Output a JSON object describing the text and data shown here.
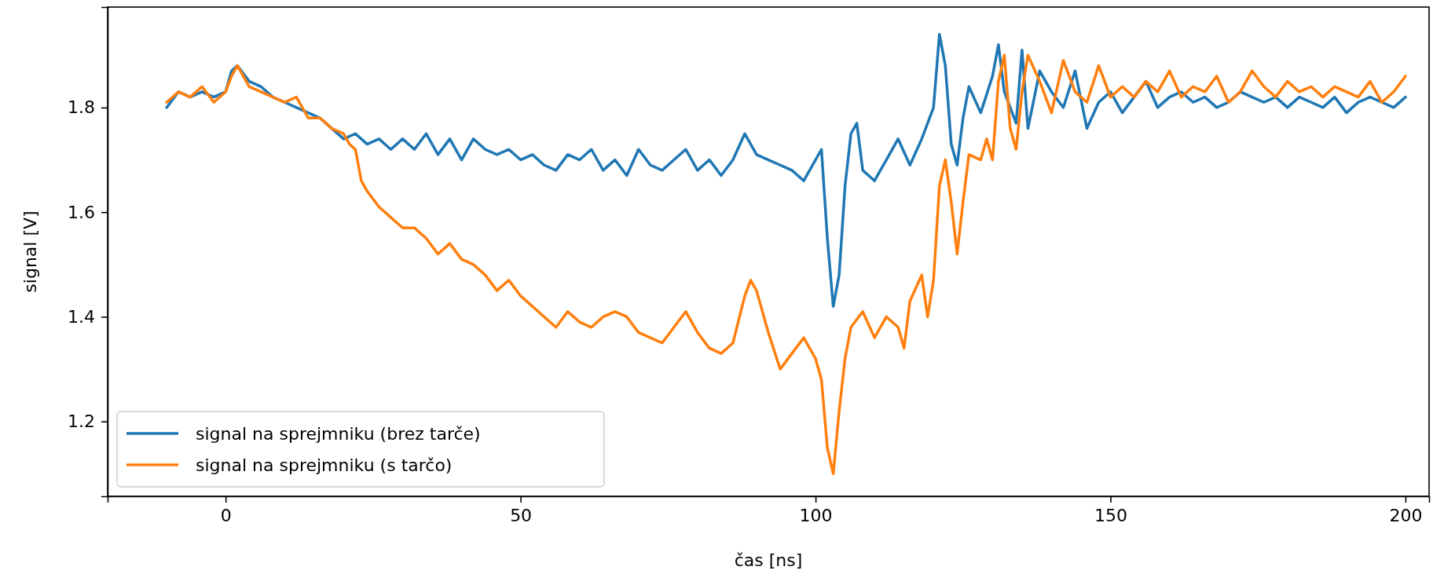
{
  "chart_data": {
    "type": "line",
    "xlabel": "čas [ns]",
    "ylabel": "signal [V]",
    "xlim": [
      -20,
      204
    ],
    "ylim": [
      1.057,
      1.992
    ],
    "xticks": [
      0,
      50,
      100,
      150,
      200
    ],
    "yticks": [
      1.2,
      1.4,
      1.6,
      1.8
    ],
    "legend": "bottom left",
    "grid": false,
    "series": [
      {
        "name": "signal na sprejmniku (brez tarče)",
        "color": "#1f77b4",
        "x": [
          -10,
          -8,
          -6,
          -4,
          -2,
          0,
          1,
          2,
          4,
          6,
          8,
          10,
          12,
          14,
          16,
          18,
          20,
          22,
          24,
          26,
          28,
          30,
          32,
          34,
          36,
          38,
          40,
          42,
          44,
          46,
          48,
          50,
          52,
          54,
          56,
          58,
          60,
          62,
          64,
          66,
          68,
          70,
          72,
          74,
          76,
          78,
          80,
          82,
          84,
          86,
          88,
          90,
          92,
          94,
          96,
          98,
          100,
          101,
          102,
          103,
          104,
          105,
          106,
          107,
          108,
          110,
          112,
          114,
          116,
          118,
          120,
          121,
          122,
          123,
          124,
          125,
          126,
          128,
          130,
          131,
          132,
          134,
          135,
          136,
          138,
          140,
          142,
          144,
          146,
          148,
          150,
          152,
          154,
          156,
          158,
          160,
          162,
          164,
          166,
          168,
          170,
          172,
          174,
          176,
          178,
          180,
          182,
          184,
          186,
          188,
          190,
          192,
          194,
          196,
          198,
          200
        ],
        "values": [
          1.8,
          1.83,
          1.82,
          1.83,
          1.82,
          1.83,
          1.87,
          1.88,
          1.85,
          1.84,
          1.82,
          1.81,
          1.8,
          1.79,
          1.78,
          1.76,
          1.74,
          1.75,
          1.73,
          1.74,
          1.72,
          1.74,
          1.72,
          1.75,
          1.71,
          1.74,
          1.7,
          1.74,
          1.72,
          1.71,
          1.72,
          1.7,
          1.71,
          1.69,
          1.68,
          1.71,
          1.7,
          1.72,
          1.68,
          1.7,
          1.67,
          1.72,
          1.69,
          1.68,
          1.7,
          1.72,
          1.68,
          1.7,
          1.67,
          1.7,
          1.75,
          1.71,
          1.7,
          1.69,
          1.68,
          1.66,
          1.7,
          1.72,
          1.55,
          1.42,
          1.48,
          1.65,
          1.75,
          1.77,
          1.68,
          1.66,
          1.7,
          1.74,
          1.69,
          1.74,
          1.8,
          1.94,
          1.88,
          1.73,
          1.69,
          1.78,
          1.84,
          1.79,
          1.86,
          1.92,
          1.83,
          1.77,
          1.91,
          1.76,
          1.87,
          1.83,
          1.8,
          1.87,
          1.76,
          1.81,
          1.83,
          1.79,
          1.82,
          1.85,
          1.8,
          1.82,
          1.83,
          1.81,
          1.82,
          1.8,
          1.81,
          1.83,
          1.82,
          1.81,
          1.82,
          1.8,
          1.82,
          1.81,
          1.8,
          1.82,
          1.79,
          1.81,
          1.82,
          1.81,
          1.8,
          1.82
        ]
      },
      {
        "name": "signal na sprejmniku (s tarčo)",
        "color": "#ff7f0e",
        "x": [
          -10,
          -8,
          -6,
          -4,
          -2,
          0,
          1,
          2,
          4,
          6,
          8,
          10,
          12,
          14,
          16,
          18,
          20,
          21,
          22,
          23,
          24,
          26,
          28,
          30,
          32,
          34,
          36,
          38,
          40,
          42,
          44,
          46,
          48,
          50,
          52,
          54,
          56,
          58,
          60,
          62,
          64,
          66,
          68,
          70,
          72,
          74,
          76,
          78,
          80,
          82,
          84,
          86,
          88,
          89,
          90,
          92,
          94,
          96,
          98,
          100,
          101,
          102,
          103,
          104,
          105,
          106,
          108,
          110,
          112,
          114,
          115,
          116,
          118,
          119,
          120,
          121,
          122,
          123,
          124,
          125,
          126,
          128,
          129,
          130,
          131,
          132,
          133,
          134,
          135,
          136,
          138,
          140,
          142,
          144,
          146,
          148,
          150,
          152,
          154,
          156,
          158,
          160,
          162,
          164,
          166,
          168,
          170,
          172,
          174,
          176,
          178,
          180,
          182,
          184,
          186,
          188,
          190,
          192,
          194,
          196,
          198,
          200
        ],
        "values": [
          1.81,
          1.83,
          1.82,
          1.84,
          1.81,
          1.83,
          1.86,
          1.88,
          1.84,
          1.83,
          1.82,
          1.81,
          1.82,
          1.78,
          1.78,
          1.76,
          1.75,
          1.73,
          1.72,
          1.66,
          1.64,
          1.61,
          1.59,
          1.57,
          1.57,
          1.55,
          1.52,
          1.54,
          1.51,
          1.5,
          1.48,
          1.45,
          1.47,
          1.44,
          1.42,
          1.4,
          1.38,
          1.41,
          1.39,
          1.38,
          1.4,
          1.41,
          1.4,
          1.37,
          1.36,
          1.35,
          1.38,
          1.41,
          1.37,
          1.34,
          1.33,
          1.35,
          1.44,
          1.47,
          1.45,
          1.37,
          1.3,
          1.33,
          1.36,
          1.32,
          1.28,
          1.15,
          1.1,
          1.22,
          1.32,
          1.38,
          1.41,
          1.36,
          1.4,
          1.38,
          1.34,
          1.43,
          1.48,
          1.4,
          1.47,
          1.65,
          1.7,
          1.62,
          1.52,
          1.62,
          1.71,
          1.7,
          1.74,
          1.7,
          1.85,
          1.9,
          1.76,
          1.72,
          1.83,
          1.9,
          1.85,
          1.79,
          1.89,
          1.83,
          1.81,
          1.88,
          1.82,
          1.84,
          1.82,
          1.85,
          1.83,
          1.87,
          1.82,
          1.84,
          1.83,
          1.86,
          1.81,
          1.83,
          1.87,
          1.84,
          1.82,
          1.85,
          1.83,
          1.84,
          1.82,
          1.84,
          1.83,
          1.82,
          1.85,
          1.81,
          1.83,
          1.86
        ]
      }
    ]
  }
}
